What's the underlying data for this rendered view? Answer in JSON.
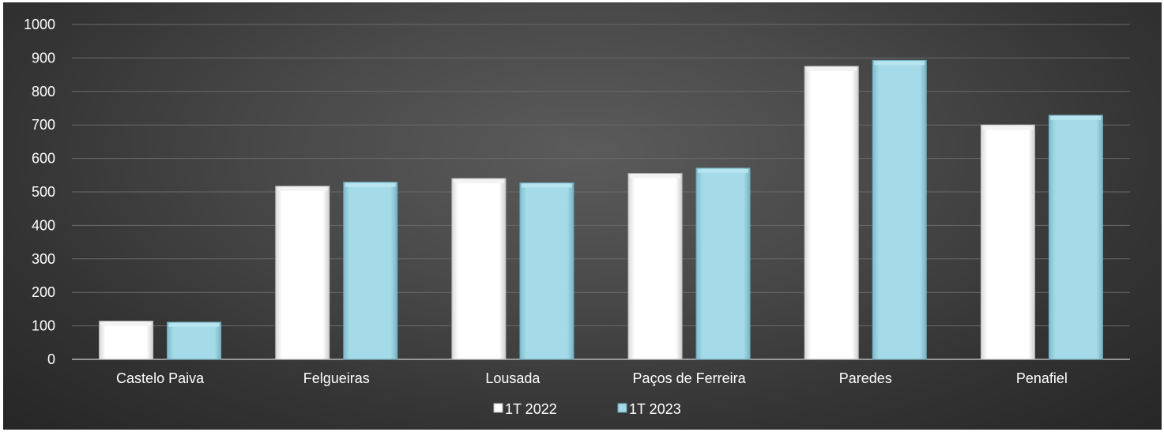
{
  "chart_data": {
    "type": "bar",
    "title": "",
    "xlabel": "",
    "ylabel": "",
    "categories": [
      "Castelo Paiva",
      "Felgueiras",
      "Lousada",
      "Paços de Ferreira",
      "Paredes",
      "Penafiel"
    ],
    "series": [
      {
        "name": "1T 2022",
        "color": "#ffffff",
        "values": [
          114,
          517,
          540,
          555,
          875,
          700
        ]
      },
      {
        "name": "1T 2023",
        "color": "#9fd8e6",
        "values": [
          111,
          529,
          527,
          571,
          893,
          729
        ]
      }
    ],
    "ylim": [
      0,
      1000
    ],
    "yticks": [
      0,
      100,
      200,
      300,
      400,
      500,
      600,
      700,
      800,
      900,
      1000
    ],
    "grid": true,
    "legend_position": "bottom"
  }
}
